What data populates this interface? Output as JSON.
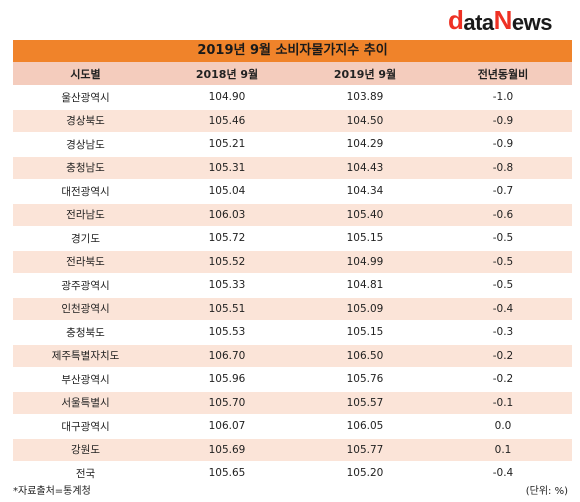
{
  "logo": {
    "d": "d",
    "mid": "ata",
    "n": "N",
    "end": "ews"
  },
  "title": "2019년 9월 소비자물가지수 추이",
  "headers": [
    "시도별",
    "2018년 9월",
    "2019년 9월",
    "전년동월비"
  ],
  "rows": [
    [
      "울산광역시",
      "104.90",
      "103.89",
      "-1.0"
    ],
    [
      "경상북도",
      "105.46",
      "104.50",
      "-0.9"
    ],
    [
      "경상남도",
      "105.21",
      "104.29",
      "-0.9"
    ],
    [
      "충청남도",
      "105.31",
      "104.43",
      "-0.8"
    ],
    [
      "대전광역시",
      "105.04",
      "104.34",
      "-0.7"
    ],
    [
      "전라남도",
      "106.03",
      "105.40",
      "-0.6"
    ],
    [
      "경기도",
      "105.72",
      "105.15",
      "-0.5"
    ],
    [
      "전라북도",
      "105.52",
      "104.99",
      "-0.5"
    ],
    [
      "광주광역시",
      "105.33",
      "104.81",
      "-0.5"
    ],
    [
      "인천광역시",
      "105.51",
      "105.09",
      "-0.4"
    ],
    [
      "충청북도",
      "105.53",
      "105.15",
      "-0.3"
    ],
    [
      "제주특별자치도",
      "106.70",
      "106.50",
      "-0.2"
    ],
    [
      "부산광역시",
      "105.96",
      "105.76",
      "-0.2"
    ],
    [
      "서울특별시",
      "105.70",
      "105.57",
      "-0.1"
    ],
    [
      "대구광역시",
      "106.07",
      "106.05",
      "0.0"
    ],
    [
      "강원도",
      "105.69",
      "105.77",
      "0.1"
    ],
    [
      "전국",
      "105.65",
      "105.20",
      "-0.4"
    ]
  ],
  "footer": {
    "source": "*자료출처=통계청",
    "unit": "(단위: %)"
  },
  "colors": {
    "title_bg": "#f0832a",
    "header_bg": "#f4ccbd",
    "stripe_bg": "#fbe4d8",
    "logo_accent": "#ee3124"
  }
}
